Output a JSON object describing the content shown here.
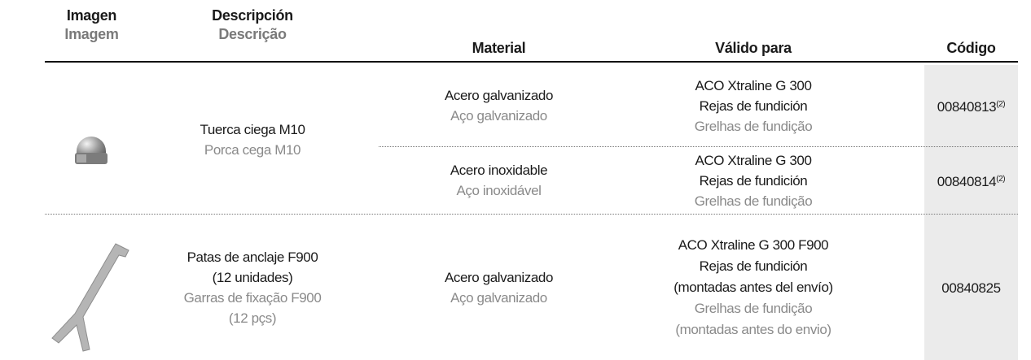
{
  "header": {
    "columns": [
      {
        "es": "Imagen",
        "pt": "Imagem"
      },
      {
        "es": "Descripción",
        "pt": "Descrição"
      },
      {
        "es": "Material"
      },
      {
        "es": "Válido para"
      },
      {
        "es": "Código"
      }
    ]
  },
  "table": {
    "rows": [
      {
        "description": {
          "es": [
            "Tuerca ciega M10"
          ],
          "pt": [
            "Porca cega M10"
          ]
        },
        "variants": [
          {
            "material": {
              "es": "Acero galvanizado",
              "pt": "Aço galvanizado"
            },
            "valid_for": {
              "es": [
                "ACO Xtraline G 300",
                "Rejas de fundición"
              ],
              "pt": [
                "Grelhas de fundição"
              ]
            },
            "code": "00840813",
            "note": "(2)"
          },
          {
            "material": {
              "es": "Acero inoxidable",
              "pt": "Aço inoxidável"
            },
            "valid_for": {
              "es": [
                "ACO Xtraline G 300",
                "Rejas de fundición"
              ],
              "pt": [
                "Grelhas de fundição"
              ]
            },
            "code": "00840814",
            "note": "(2)"
          }
        ]
      },
      {
        "description": {
          "es": [
            "Patas de anclaje F900",
            "(12 unidades)"
          ],
          "pt": [
            "Garras de fixação F900",
            "(12 pçs)"
          ]
        },
        "variants": [
          {
            "material": {
              "es": "Acero galvanizado",
              "pt": "Aço galvanizado"
            },
            "valid_for": {
              "es": [
                "ACO Xtraline G 300 F900",
                "Rejas de fundición",
                "(montadas antes del envío)"
              ],
              "pt": [
                "Grelhas de fundição",
                "(montadas antes do envio)"
              ]
            },
            "code": "00840825"
          }
        ]
      }
    ]
  }
}
